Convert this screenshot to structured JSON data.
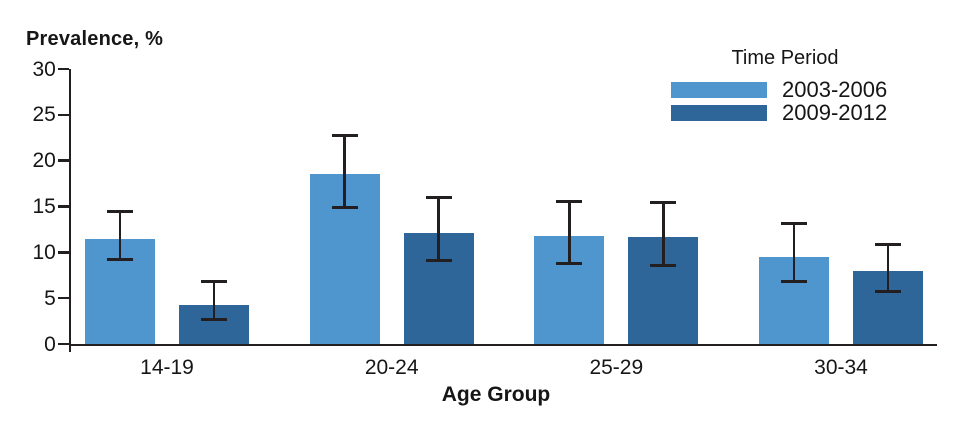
{
  "chart_data": {
    "type": "bar",
    "title": "",
    "ylabel": "Prevalence, %",
    "xlabel": "Age Group",
    "ylim": [
      0,
      30
    ],
    "yticks": [
      0,
      5,
      10,
      15,
      20,
      25,
      30
    ],
    "categories": [
      "14-19",
      "20-24",
      "25-29",
      "30-34"
    ],
    "grid": false,
    "legend_title": "Time Period",
    "legend_position": "top-right",
    "error_bars": true,
    "series": [
      {
        "name": "2003-2006",
        "color": "#4f95ce",
        "values": [
          11.5,
          18.5,
          11.8,
          9.5
        ],
        "ci_low": [
          9.2,
          14.9,
          8.8,
          6.8
        ],
        "ci_high": [
          14.5,
          22.8,
          15.5,
          13.1
        ]
      },
      {
        "name": "2009-2012",
        "color": "#2f6699",
        "values": [
          4.3,
          12.1,
          11.7,
          8.0
        ],
        "ci_low": [
          2.7,
          9.1,
          8.6,
          5.7
        ],
        "ci_high": [
          6.8,
          16.0,
          15.4,
          10.9
        ]
      }
    ],
    "axis_color": "#231f20",
    "text_color": "#161616"
  }
}
